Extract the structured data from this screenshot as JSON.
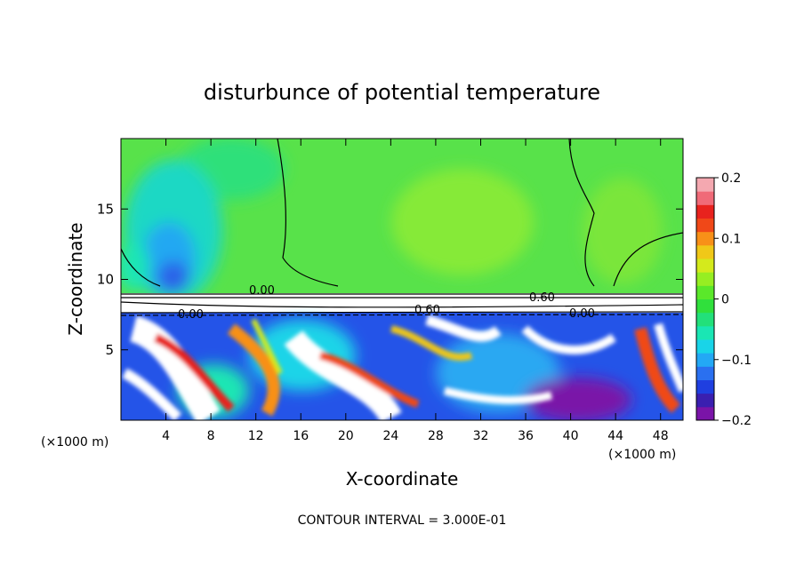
{
  "chart_data": {
    "type": "heatmap",
    "title": "disturbunce of potential temperature",
    "xlabel": "X-coordinate",
    "ylabel": "Z-coordinate",
    "x_unit_left": "(×1000 m)",
    "x_unit_right": "(×1000 m)",
    "x_ticks": [
      "4",
      "8",
      "12",
      "16",
      "20",
      "24",
      "28",
      "32",
      "36",
      "40",
      "44",
      "48"
    ],
    "y_ticks": [
      "5",
      "10",
      "15"
    ],
    "xlim": [
      0,
      50
    ],
    "ylim": [
      0,
      20
    ],
    "colorbar": {
      "ticks": [
        "0.2",
        "0.1",
        "0",
        "−0.1",
        "−0.2"
      ],
      "range": [
        -0.2,
        0.2
      ],
      "colors": [
        "#7a14a8",
        "#3a1fb0",
        "#1f3fe0",
        "#2a70f0",
        "#23a8f5",
        "#19d4e8",
        "#1ae6b4",
        "#22e07a",
        "#30e03c",
        "#5ae82a",
        "#96ee22",
        "#d4ea1c",
        "#f0c818",
        "#f89018",
        "#f04818",
        "#e8221e",
        "#f06a78",
        "#f4a8b0"
      ]
    },
    "contour_labels": [
      "0.00",
      "0.00",
      "0.60",
      "0.60",
      "0.00"
    ],
    "footer": "CONTOUR INTERVAL = 3.000E-01"
  }
}
